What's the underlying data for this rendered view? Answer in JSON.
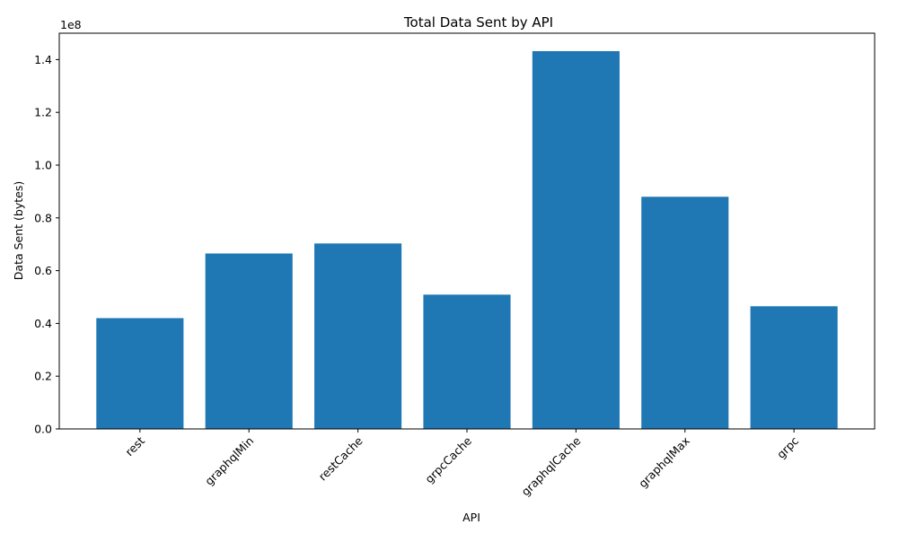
{
  "chart_data": {
    "type": "bar",
    "title": "Total Data Sent by API",
    "xlabel": "API",
    "ylabel": "Data Sent (bytes)",
    "y_offset_label": "1e8",
    "categories": [
      "rest",
      "graphqlMin",
      "restCache",
      "grpcCache",
      "graphqlCache",
      "graphqlMax",
      "grpc"
    ],
    "values": [
      42000000,
      66500000,
      70300000,
      50900000,
      143200000,
      88000000,
      46500000
    ],
    "ylim": [
      0,
      150000000
    ],
    "y_ticks": [
      0,
      20000000,
      40000000,
      60000000,
      80000000,
      100000000,
      120000000,
      140000000
    ],
    "y_tick_labels": [
      "0.0",
      "0.2",
      "0.4",
      "0.6",
      "0.8",
      "1.0",
      "1.2",
      "1.4"
    ],
    "bar_color": "#1f77b4",
    "grid": false,
    "x_tick_rotation_deg": 45
  }
}
